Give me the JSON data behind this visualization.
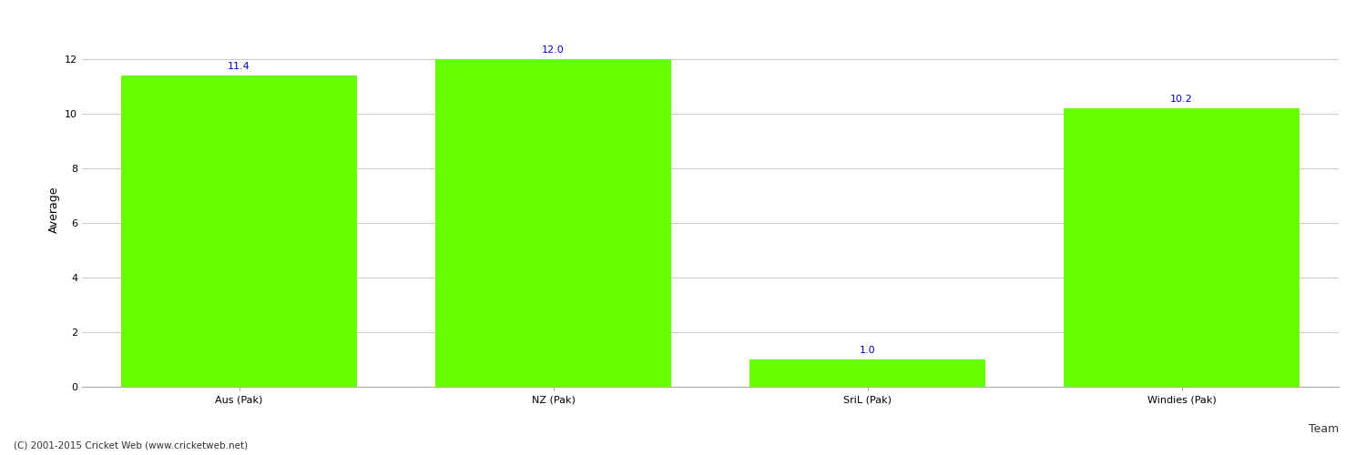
{
  "categories": [
    "Aus (Pak)",
    "NZ (Pak)",
    "SriL (Pak)",
    "Windies (Pak)"
  ],
  "values": [
    11.4,
    12.0,
    1.0,
    10.2
  ],
  "bar_color": "#66ff00",
  "bar_edge_color": "#66ff00",
  "value_label_color": "#0000cc",
  "value_label_fontsize": 8,
  "xlabel": "Team",
  "ylabel": "Average",
  "ylim": [
    0,
    13
  ],
  "yticks": [
    0,
    2,
    4,
    6,
    8,
    10,
    12
  ],
  "grid_color": "#cccccc",
  "grid_linewidth": 0.8,
  "background_color": "#ffffff",
  "footer_text": "(C) 2001-2015 Cricket Web (www.cricketweb.net)",
  "footer_fontsize": 7.5,
  "footer_color": "#333333",
  "axis_label_fontsize": 9,
  "tick_label_fontsize": 8,
  "bar_width": 0.75,
  "figure_width": 15.0,
  "figure_height": 5.0
}
